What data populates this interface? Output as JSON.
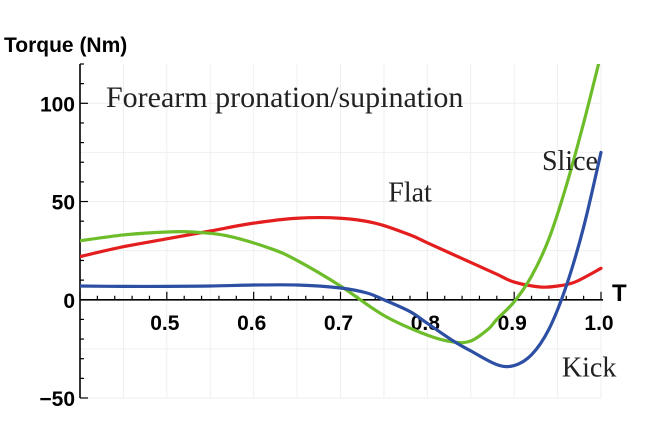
{
  "chart_data": {
    "type": "line",
    "title": "Forearm pronation/supination",
    "ylabel": "Torque (Nm)",
    "xlabel": "T",
    "xlim": [
      0.4,
      1.0
    ],
    "ylim": [
      -50,
      120
    ],
    "xticks": [
      0.5,
      0.6,
      0.7,
      0.8,
      0.9,
      1.0
    ],
    "xtick_labels": [
      "0.5",
      "0.6",
      "0.7",
      "0.8",
      "0.9",
      "1.0"
    ],
    "yticks": [
      -50,
      0,
      50,
      100
    ],
    "ytick_labels": [
      "−50",
      "0",
      "50",
      "100"
    ],
    "grid": true,
    "series": [
      {
        "name": "Flat",
        "color": "#e41e1e",
        "x": [
          0.4,
          0.45,
          0.5,
          0.55,
          0.6,
          0.65,
          0.7,
          0.74,
          0.78,
          0.8,
          0.85,
          0.88,
          0.9,
          0.93,
          0.95,
          0.97,
          1.0
        ],
        "y": [
          22,
          27,
          31,
          35,
          39,
          41.5,
          41.5,
          39,
          33,
          29,
          19,
          13,
          9,
          6.5,
          7,
          9,
          16
        ]
      },
      {
        "name": "Slice",
        "color": "#6dbd2a",
        "x": [
          0.4,
          0.45,
          0.5,
          0.53,
          0.57,
          0.62,
          0.65,
          0.7,
          0.75,
          0.8,
          0.83,
          0.85,
          0.87,
          0.88,
          0.9,
          0.92,
          0.94,
          0.96,
          0.98,
          1.0
        ],
        "y": [
          30,
          33,
          34.5,
          34.5,
          32.5,
          26,
          20,
          7,
          -8,
          -18,
          -21.5,
          -21,
          -15,
          -10,
          -1,
          12,
          31,
          58,
          90,
          125
        ]
      },
      {
        "name": "Kick",
        "color": "#2d4fa3",
        "x": [
          0.4,
          0.45,
          0.5,
          0.55,
          0.6,
          0.65,
          0.7,
          0.73,
          0.75,
          0.78,
          0.8,
          0.83,
          0.85,
          0.88,
          0.9,
          0.92,
          0.94,
          0.96,
          0.98,
          1.0
        ],
        "y": [
          7,
          6.8,
          6.8,
          7,
          7.5,
          7.5,
          6,
          3.5,
          0,
          -6,
          -12,
          -21,
          -26,
          -33,
          -33.5,
          -28,
          -15,
          7,
          37,
          75
        ]
      }
    ],
    "annotations": [
      {
        "text": "Flat",
        "x": 0.755,
        "y": 50
      },
      {
        "text": "Slice",
        "x": 0.932,
        "y": 66
      },
      {
        "text": "Kick",
        "x": 0.955,
        "y": -39
      }
    ]
  }
}
